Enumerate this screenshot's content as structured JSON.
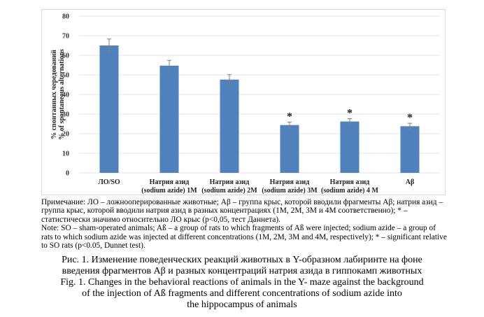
{
  "chart_data": {
    "type": "bar",
    "title": "",
    "ylabel_lines": [
      "% спонтанных чередований",
      "% of spontaneous alternations"
    ],
    "xlabel": "",
    "ylim": [
      0,
      80
    ],
    "yticks": [
      0,
      10,
      20,
      30,
      40,
      50,
      60,
      70,
      80
    ],
    "grid": true,
    "legend": "none",
    "bar_color": "#4f81bd",
    "categories": [
      [
        "ЛО/SO"
      ],
      [
        "Натрия  азид",
        "(sodium azide) 1M"
      ],
      [
        "Натрия  азид",
        "(sodium azide) 2M"
      ],
      [
        "Натрия  азид",
        "(sodium azide) 3M"
      ],
      [
        "Натрия  азид",
        "(sodium azide) 4 M"
      ],
      [
        "Aβ"
      ]
    ],
    "values": [
      65,
      54.7,
      47.6,
      24.4,
      26.2,
      23.8
    ],
    "errors": [
      3.3,
      2.7,
      2.5,
      1.5,
      1.5,
      1.5
    ],
    "significance": [
      "",
      "",
      "",
      "*",
      "*",
      "*"
    ]
  },
  "note": {
    "ru": "Примечание: ЛО – ложнооперированные животные; Aβ – группа крыс, которой вводили фрагменты Aβ; натрия азид – группа крыс, которой вводили натрия азид в разных концентрациях (1M, 2M, 3M и 4M соответственно); * – статистически значимо относительно ЛО крыс (p<0,05, тест Даннета).",
    "en": "Note: SO – sham-operated animals; Aß – a group of rats to which fragments of Aß were injected; sodium azide – a group of rats to which sodium azide was injected at different concentrations (1M, 2M, 3M and 4M, respectively); * – significant relative to SO rats (p<0.05, Dunnet test)."
  },
  "caption": {
    "ru_line1": "Рис. 1. Изменение поведенческих реакций животных в Y-образном лабиринте на фоне",
    "ru_line2": "введения фрагментов Aβ и разных концентраций натрия азида в гиппокамп животных",
    "en_line1": "Fig. 1. Changes in the behavioral reactions of animals in the Y- maze against the background",
    "en_line2": "of the injection of Aß fragments and different concentrations of sodium azide into",
    "en_line3": "the hippocampus of animals"
  }
}
